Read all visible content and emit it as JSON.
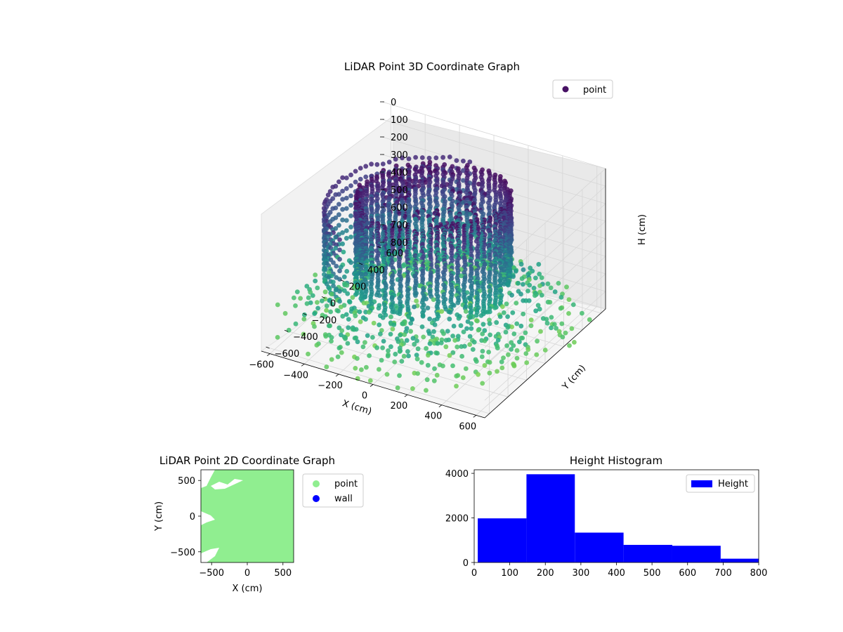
{
  "chart_data": [
    {
      "type": "scatter3d",
      "title": "LiDAR Point 3D Coordinate Graph",
      "xlabel": "X (cm)",
      "ylabel": "Y (cm)",
      "zlabel": "H (cm)",
      "x_ticks": [
        "−600",
        "−400",
        "−200",
        "0",
        "200",
        "400",
        "600"
      ],
      "y_ticks": [
        "−600",
        "−400",
        "−200",
        "0",
        "200",
        "400",
        "600"
      ],
      "z_ticks": [
        "0",
        "100",
        "200",
        "300",
        "400",
        "500",
        "600",
        "700",
        "800"
      ],
      "xlim": [
        -650,
        650
      ],
      "ylim": [
        -650,
        650
      ],
      "zlim": [
        800,
        0
      ],
      "legend": {
        "label": "point",
        "placement": "upper-right"
      },
      "colormap": "viridis",
      "grid": true,
      "colors": {
        "high": "#471164",
        "mid": "#2a788e",
        "low": "#5ec962"
      }
    },
    {
      "type": "scatter",
      "title": "LiDAR Point 2D Coordinate Graph",
      "xlabel": "X (cm)",
      "ylabel": "Y (cm)",
      "x_ticks": [
        "−500",
        "0",
        "500"
      ],
      "y_ticks": [
        "−500",
        "0",
        "500"
      ],
      "xlim": [
        -650,
        650
      ],
      "ylim": [
        -650,
        650
      ],
      "legend": [
        {
          "label": "point",
          "color": "#90ee90"
        },
        {
          "label": "wall",
          "color": "#0000ff"
        }
      ],
      "legend_placement": "outside-right"
    },
    {
      "type": "histogram",
      "title": "Height Histogram",
      "bins": [
        {
          "start": 10,
          "end": 147,
          "count": 1980
        },
        {
          "start": 147,
          "end": 283,
          "count": 3960
        },
        {
          "start": 283,
          "end": 420,
          "count": 1340
        },
        {
          "start": 420,
          "end": 557,
          "count": 790
        },
        {
          "start": 557,
          "end": 693,
          "count": 750
        },
        {
          "start": 693,
          "end": 800,
          "count": 170
        }
      ],
      "x_ticks": [
        "0",
        "100",
        "200",
        "300",
        "400",
        "500",
        "600",
        "700",
        "800"
      ],
      "y_ticks": [
        "0",
        "2000",
        "4000"
      ],
      "xlim": [
        0,
        800
      ],
      "ylim": [
        0,
        4160
      ],
      "legend": {
        "label": "Height",
        "color": "#0000ff",
        "placement": "upper-right"
      },
      "bar_color": "#0000ff"
    }
  ]
}
